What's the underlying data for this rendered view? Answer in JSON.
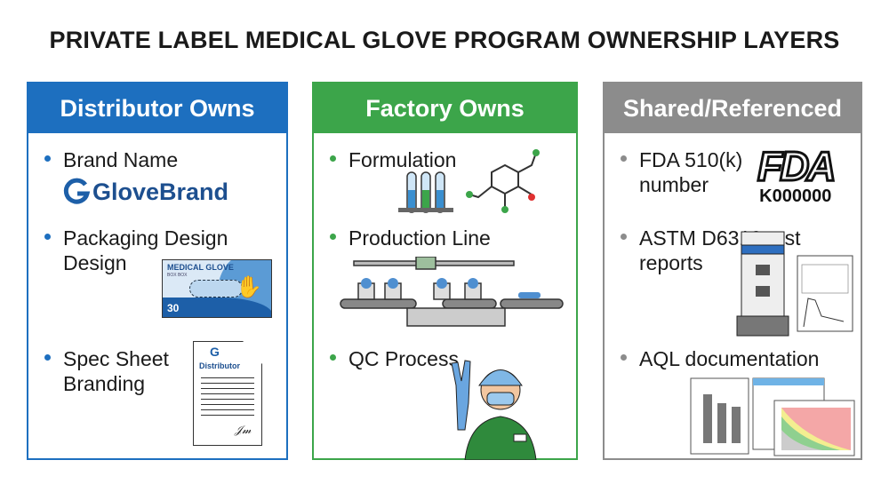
{
  "title": "PRIVATE LABEL MEDICAL GLOVE PROGRAM OWNERSHIP LAYERS",
  "colors": {
    "distributor": "#1d6fbf",
    "factory": "#3ca54a",
    "shared": "#8c8c8c"
  },
  "panels": [
    {
      "header": "Distributor Owns",
      "items": [
        {
          "label": "Brand Name",
          "art": {
            "logo_text": "GloveBrand",
            "icon": "glovebrand-logo"
          }
        },
        {
          "label": "Packaging Design\nDesign",
          "art": {
            "box_title": "MEDICAL GLOVE",
            "box_sub": "BOX BOX",
            "box_count": "30",
            "icon": "glove-box-icon"
          }
        },
        {
          "label": "Spec Sheet\nBranding",
          "art": {
            "doc_title": "Distributor",
            "icon": "spec-sheet-document-icon"
          }
        }
      ]
    },
    {
      "header": "Factory Owns",
      "items": [
        {
          "label": "Formulation",
          "art": {
            "icon": "test-tubes-molecule-icon"
          }
        },
        {
          "label": "Production Line",
          "art": {
            "icon": "conveyor-line-icon"
          }
        },
        {
          "label": "QC Process",
          "art": {
            "icon": "qc-worker-icon"
          }
        }
      ]
    },
    {
      "header": "Shared/Referenced",
      "items": [
        {
          "label": "FDA 510(k)\nnumber",
          "art": {
            "logo_text": "FDA",
            "code": "K000000",
            "icon": "fda-logo"
          }
        },
        {
          "label": "ASTM D6319 test\nreports",
          "art": {
            "icon": "tensile-tester-report-icon"
          }
        },
        {
          "label": "AQL documentation",
          "art": {
            "icon": "aql-charts-icon"
          }
        }
      ]
    }
  ]
}
